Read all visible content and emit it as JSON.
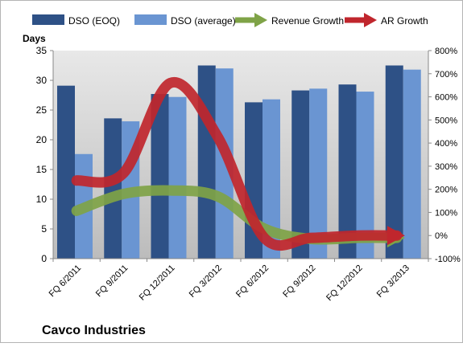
{
  "chart_data": {
    "type": "bar",
    "title": "Cavco Industries",
    "ylabel": "Days",
    "y2label": "",
    "categories": [
      "FQ 6/2011",
      "FQ 9/2011",
      "FQ 12/2011",
      "FQ 3/2012",
      "FQ 6/2012",
      "FQ 9/2012",
      "FQ 12/2012",
      "FQ 3/2013"
    ],
    "ylim": [
      0,
      35
    ],
    "y_ticks": [
      0,
      5,
      10,
      15,
      20,
      25,
      30,
      35
    ],
    "y2lim": [
      -100,
      800
    ],
    "y2_ticks": [
      -100,
      0,
      100,
      200,
      300,
      400,
      500,
      600,
      700,
      800
    ],
    "y2_tick_suffix": "%",
    "grid": false,
    "legend_position": "top",
    "series": [
      {
        "name": "DSO (EOQ)",
        "kind": "bar",
        "axis": "left",
        "color": "#2e5186",
        "values": [
          29.1,
          23.6,
          27.7,
          32.5,
          26.3,
          28.3,
          29.3,
          32.5
        ]
      },
      {
        "name": "DSO (average)",
        "kind": "bar",
        "axis": "left",
        "color": "#6a95d2",
        "values": [
          17.6,
          23.1,
          27.2,
          32.0,
          26.8,
          28.6,
          28.1,
          31.8
        ]
      },
      {
        "name": "Revenue Growth",
        "kind": "line",
        "axis": "right",
        "color": "#7fa347",
        "values": [
          107,
          180,
          195,
          170,
          30,
          -15,
          -10,
          -10
        ]
      },
      {
        "name": "AR Growth",
        "kind": "line",
        "axis": "right",
        "color": "#c0262d",
        "values": [
          238,
          270,
          660,
          430,
          -10,
          -10,
          0,
          0
        ]
      }
    ]
  }
}
